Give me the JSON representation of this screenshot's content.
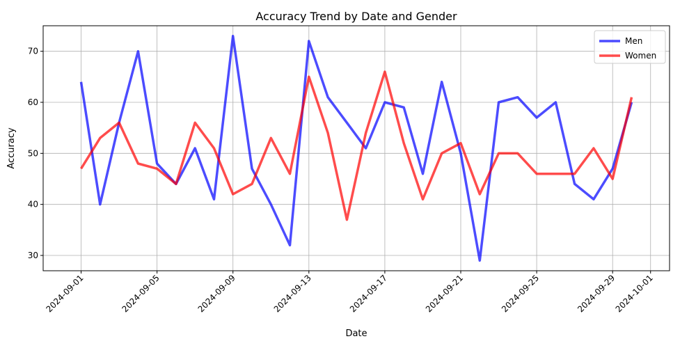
{
  "chart_data": {
    "type": "line",
    "title": "Accuracy Trend by Date and Gender",
    "xlabel": "Date",
    "ylabel": "Accuracy",
    "x": [
      "2024-09-01",
      "2024-09-02",
      "2024-09-03",
      "2024-09-04",
      "2024-09-05",
      "2024-09-06",
      "2024-09-07",
      "2024-09-08",
      "2024-09-09",
      "2024-09-10",
      "2024-09-11",
      "2024-09-12",
      "2024-09-13",
      "2024-09-14",
      "2024-09-15",
      "2024-09-16",
      "2024-09-17",
      "2024-09-18",
      "2024-09-19",
      "2024-09-20",
      "2024-09-21",
      "2024-09-22",
      "2024-09-23",
      "2024-09-24",
      "2024-09-25",
      "2024-09-26",
      "2024-09-27",
      "2024-09-28",
      "2024-09-29",
      "2024-09-30"
    ],
    "series": [
      {
        "name": "Men",
        "color": "#0000ff",
        "values": [
          64,
          40,
          56,
          70,
          48,
          44,
          51,
          41,
          73,
          47,
          40,
          32,
          72,
          61,
          56,
          51,
          60,
          59,
          46,
          64,
          50,
          29,
          60,
          61,
          57,
          60,
          44,
          41,
          47,
          60
        ]
      },
      {
        "name": "Women",
        "color": "#ff0000",
        "values": [
          47,
          53,
          56,
          48,
          47,
          44,
          56,
          51,
          42,
          44,
          53,
          46,
          65,
          54,
          37,
          54,
          66,
          52,
          41,
          50,
          52,
          42,
          50,
          50,
          46,
          46,
          46,
          51,
          45,
          61
        ]
      }
    ],
    "x_ticks": [
      "2024-09-01",
      "2024-09-05",
      "2024-09-09",
      "2024-09-13",
      "2024-09-17",
      "2024-09-21",
      "2024-09-25",
      "2024-09-29",
      "2024-10-01"
    ],
    "y_ticks": [
      30,
      40,
      50,
      60,
      70
    ],
    "xlim": [
      "2024-08-30",
      "2024-10-02"
    ],
    "ylim": [
      27,
      75
    ],
    "grid": true,
    "legend": "upper-right"
  }
}
